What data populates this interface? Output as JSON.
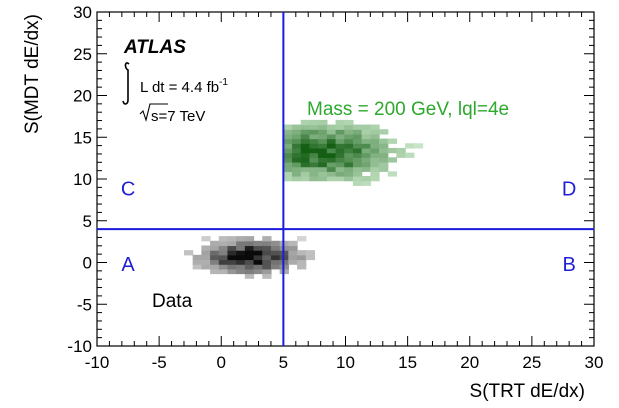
{
  "chart_data": {
    "type": "heatmap",
    "title": "",
    "xlabel": "S(TRT dE/dx)",
    "ylabel": "S(MDT dE/dx)",
    "xlim": [
      -10,
      30
    ],
    "ylim": [
      -10,
      30
    ],
    "xticks": [
      "-10",
      "-5",
      "0",
      "5",
      "10",
      "15",
      "20",
      "25",
      "30"
    ],
    "yticks": [
      "-10",
      "-5",
      "0",
      "5",
      "10",
      "15",
      "20",
      "25",
      "30"
    ],
    "cuts": {
      "x": 5,
      "y": 4
    },
    "regions": [
      {
        "label": "A",
        "x": -7.5,
        "y": -1
      },
      {
        "label": "B",
        "x": 28,
        "y": -1
      },
      {
        "label": "C",
        "x": -7.5,
        "y": 8
      },
      {
        "label": "D",
        "x": 28,
        "y": 8
      }
    ],
    "experiment": "ATLAS",
    "luminosity_text": "L dt = 4.4 fb",
    "luminosity_sup": "-1",
    "energy_text": "s=7 TeV",
    "series": [
      {
        "name": "Data",
        "color": "#000000",
        "distribution": {
          "peak_x": 2,
          "peak_y": 0.5,
          "x_range": [
            -3,
            11
          ],
          "y_range": [
            -3,
            4
          ]
        }
      },
      {
        "name": "Mass = 200 GeV, lql=4e",
        "color": "#0f8a0f",
        "distribution": {
          "peak_x": 8,
          "peak_y": 13,
          "x_range": [
            5,
            16
          ],
          "y_range": [
            7,
            17
          ]
        }
      }
    ],
    "grid": false
  }
}
